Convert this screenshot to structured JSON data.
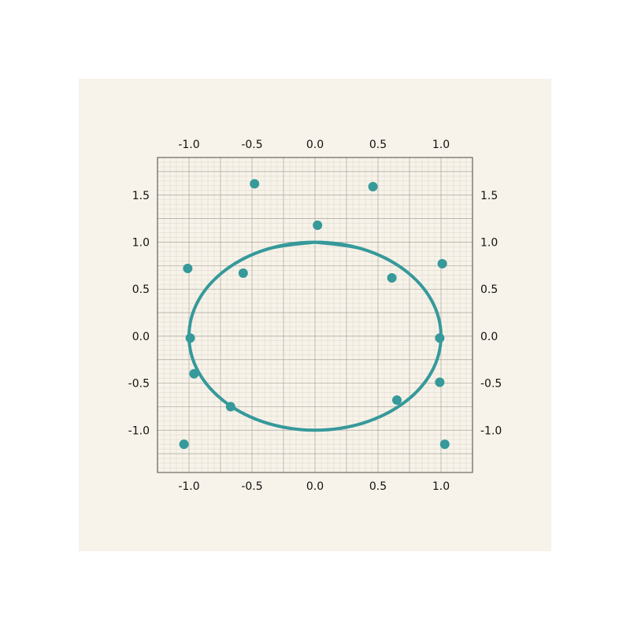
{
  "colors": {
    "panel_background": "#f7f3ea",
    "plot_background": "#f7f3ea",
    "grid_major": "#a9a49a",
    "grid_minor": "#ddd6c6",
    "series": "#36999a",
    "axis": "#222222"
  },
  "chart_data": {
    "type": "scatter",
    "title": "",
    "xlabel": "",
    "ylabel": "",
    "xlim": [
      -1.25,
      1.25
    ],
    "ylim": [
      -1.45,
      1.9
    ],
    "grid": true,
    "legend": "none",
    "x_ticks": [
      "-1.0",
      "-0.5",
      "0.0",
      "0.5",
      "1.0"
    ],
    "y_ticks": [
      "-1.0",
      "-0.5",
      "0.0",
      "0.5",
      "1.0",
      "1.5"
    ],
    "tick_labels_on": [
      "bottom",
      "top",
      "left",
      "right"
    ],
    "series": [
      {
        "type": "line",
        "curve": "parametric",
        "x": [
          0.0,
          0.383,
          0.707,
          0.924,
          1.0,
          0.924,
          0.707,
          0.383,
          0.0,
          -0.383,
          -0.707,
          -0.924,
          -1.0,
          -0.924,
          -0.707,
          -0.383,
          0.0,
          0.383,
          0.707,
          0.924,
          1.0,
          0.924,
          0.707,
          0.383,
          0.0,
          -0.383,
          -0.707,
          -0.924,
          -1.0,
          -0.924,
          -0.707,
          -0.383,
          0.0
        ],
        "y": [
          1.0,
          0.924,
          0.707,
          0.383,
          0.0,
          -0.383,
          -0.707,
          -0.924,
          -1.0,
          -0.924,
          -0.707,
          -0.383,
          0.0,
          0.383,
          0.707,
          0.924,
          1.0,
          0.924,
          0.707,
          0.383,
          0.0,
          -0.383,
          -0.707,
          -0.924,
          -1.0,
          -0.924,
          -0.707,
          -0.383,
          0.0,
          0.383,
          0.707,
          0.924,
          1.0
        ]
      },
      {
        "type": "scatter",
        "x": [
          -0.48,
          0.46,
          0.02,
          -1.01,
          -0.57,
          0.61,
          1.01,
          -0.99,
          0.99,
          -0.96,
          0.99,
          -0.67,
          0.65,
          -1.04,
          1.03
        ],
        "y": [
          1.62,
          1.59,
          1.18,
          0.72,
          0.67,
          0.62,
          0.77,
          -0.02,
          -0.02,
          -0.4,
          -0.49,
          -0.75,
          -0.68,
          -1.15,
          -1.15
        ]
      }
    ]
  }
}
